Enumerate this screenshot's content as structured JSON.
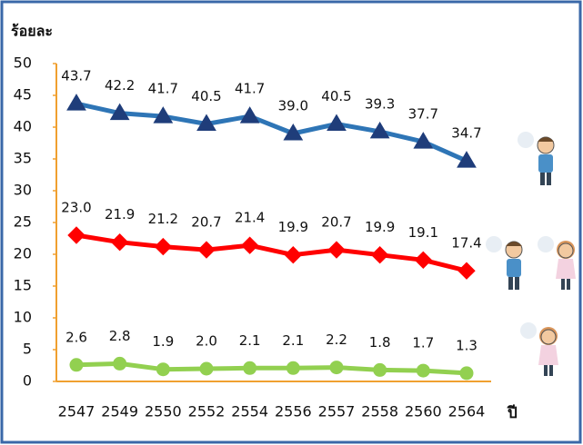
{
  "chart_data": {
    "type": "line",
    "y_label": "ร้อยละ",
    "x_label": "ปี",
    "categories": [
      "2547",
      "2549",
      "2550",
      "2552",
      "2554",
      "2556",
      "2557",
      "2558",
      "2560",
      "2564"
    ],
    "ylim": [
      0,
      50
    ],
    "yticks": [
      0,
      5,
      10,
      15,
      20,
      25,
      30,
      35,
      40,
      45,
      50
    ],
    "series": [
      {
        "color": "#2e75b6",
        "marker": "triangle",
        "marker_color": "#1f3d7a",
        "values": [
          43.7,
          42.2,
          41.7,
          40.5,
          41.7,
          39.0,
          40.5,
          39.3,
          37.7,
          34.7
        ],
        "value_labels": [
          "43.7",
          "42.2",
          "41.7",
          "40.5",
          "41.7",
          "39.0",
          "40.5",
          "39.3",
          "37.7",
          "34.7"
        ]
      },
      {
        "color": "#ff0000",
        "marker": "diamond",
        "marker_color": "#ff0000",
        "values": [
          23.0,
          21.9,
          21.2,
          20.7,
          21.4,
          19.9,
          20.7,
          19.9,
          19.1,
          17.4
        ],
        "value_labels": [
          "23.0",
          "21.9",
          "21.2",
          "20.7",
          "21.4",
          "19.9",
          "20.7",
          "19.9",
          "19.1",
          "17.4"
        ]
      },
      {
        "color": "#92d050",
        "marker": "circle",
        "marker_color": "#92d050",
        "values": [
          2.6,
          2.8,
          1.9,
          2.0,
          2.1,
          2.1,
          2.2,
          1.8,
          1.7,
          1.3
        ],
        "value_labels": [
          "2.6",
          "2.8",
          "1.9",
          "2.0",
          "2.1",
          "2.1",
          "2.2",
          "1.8",
          "1.7",
          "1.3"
        ]
      }
    ]
  }
}
